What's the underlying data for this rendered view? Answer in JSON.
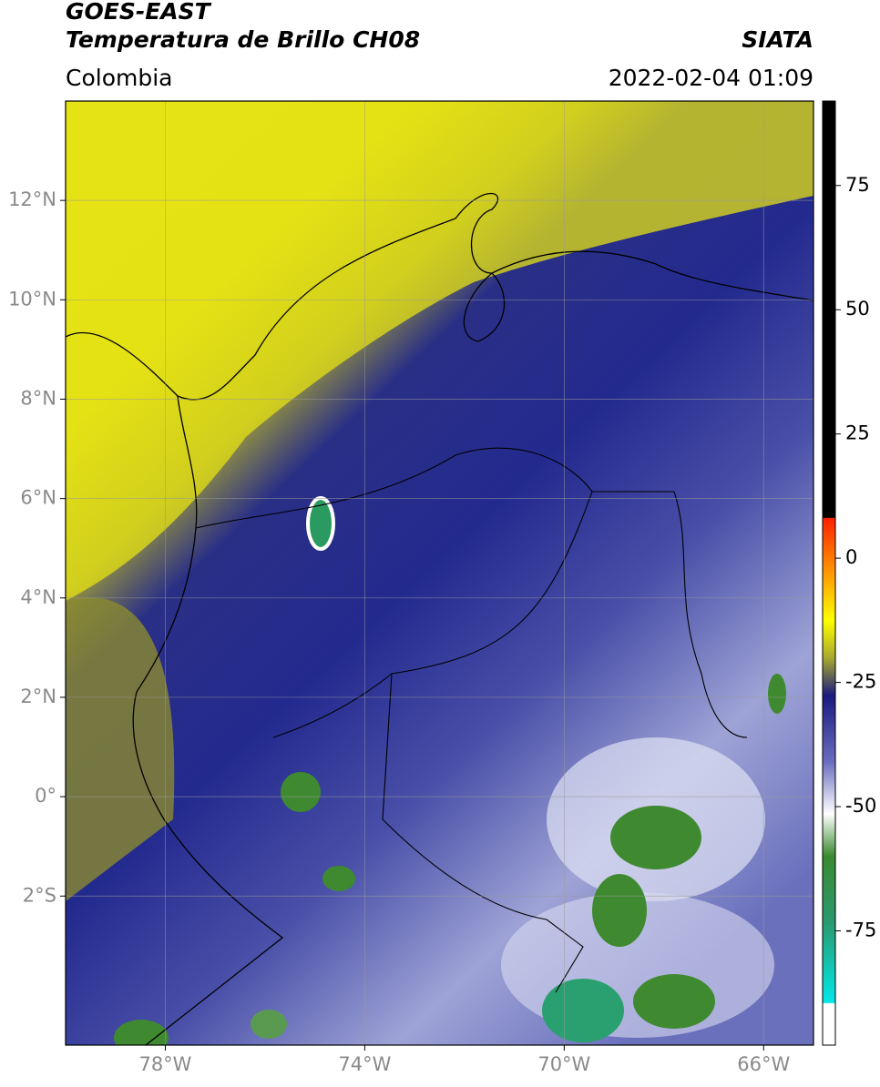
{
  "chart_data": {
    "type": "map",
    "title": "GOES-EAST",
    "subtitle": "Temperatura de Brillo CH08",
    "region": "Colombia",
    "source": "SIATA",
    "timestamp": "2022-02-04 01:09",
    "xlim": [
      -80,
      -65
    ],
    "ylim": [
      -5,
      14
    ],
    "xticks": [
      {
        "value": -78,
        "label": "78°W"
      },
      {
        "value": -74,
        "label": "74°W"
      },
      {
        "value": -70,
        "label": "70°W"
      },
      {
        "value": -66,
        "label": "66°W"
      }
    ],
    "yticks": [
      {
        "value": -2,
        "label": "2°S"
      },
      {
        "value": 0,
        "label": "0°"
      },
      {
        "value": 2,
        "label": "2°N"
      },
      {
        "value": 4,
        "label": "4°N"
      },
      {
        "value": 6,
        "label": "6°N"
      },
      {
        "value": 8,
        "label": "8°N"
      },
      {
        "value": 10,
        "label": "10°N"
      },
      {
        "value": 12,
        "label": "12°N"
      }
    ],
    "colorbar": {
      "lim": [
        -98,
        92
      ],
      "ticks": [
        75,
        50,
        25,
        0,
        -25,
        -50,
        -75
      ]
    },
    "grid": true
  }
}
